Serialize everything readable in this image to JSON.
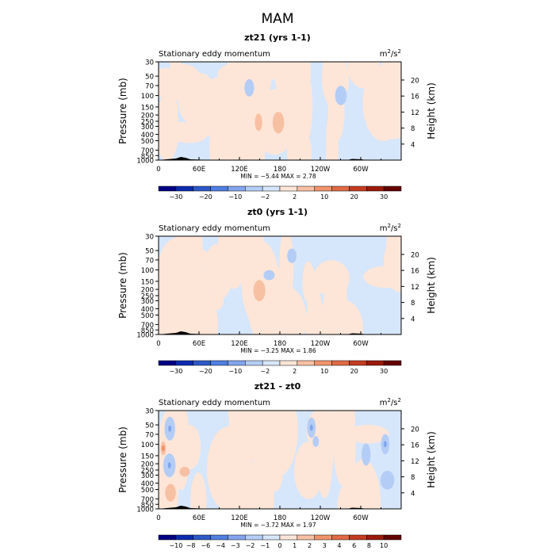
{
  "figure": {
    "title": "MAM"
  },
  "colors": {
    "full": [
      "#000083",
      "#0b2bb0",
      "#2d58c8",
      "#4f7fe0",
      "#83a5ee",
      "#b4cdf6",
      "#d6e6fb",
      "#fde6d8",
      "#f8c0a3",
      "#f0946c",
      "#e06a44",
      "#c43c20",
      "#9b1a0a",
      "#650000"
    ],
    "diff": [
      "#000083",
      "#0b2bb0",
      "#2d58c8",
      "#4f7fe0",
      "#83a5ee",
      "#b4cdf6",
      "#d6e6fb",
      "#fde6d8",
      "#f8c0a3",
      "#f0946c",
      "#e06a44",
      "#c43c20",
      "#9b1a0a",
      "#650000"
    ]
  },
  "panels": [
    {
      "title": "zt21 (yrs 1-1)",
      "left_label": "Stationary eddy momentum",
      "units_base": "m",
      "units_exp1": "2",
      "units_sep": "/s",
      "units_exp2": "2",
      "ylabel": "Pressure (mb)",
      "y2label": "Height (km)",
      "stats": "MIN =   −5.44   MAX =    2.78",
      "palette": "full",
      "levels": [
        "−30",
        "−20",
        "−10",
        "−2",
        "2",
        "10",
        "20",
        "30"
      ],
      "seed": 11,
      "strength": 0.35
    },
    {
      "title": "zt0 (yrs 1-1)",
      "left_label": "Stationary eddy momentum",
      "units_base": "m",
      "units_exp1": "2",
      "units_sep": "/s",
      "units_exp2": "2",
      "ylabel": "Pressure (mb)",
      "y2label": "Height (km)",
      "stats": "MIN =   −3.25   MAX =    1.86",
      "palette": "full",
      "levels": [
        "−30",
        "−20",
        "−10",
        "−2",
        "2",
        "10",
        "20",
        "30"
      ],
      "seed": 23,
      "strength": 0.3
    },
    {
      "title": "zt21 - zt0",
      "left_label": "Stationary eddy momentum",
      "units_base": "m",
      "units_exp1": "2",
      "units_sep": "/s",
      "units_exp2": "2",
      "ylabel": "Pressure (mb)",
      "y2label": "Height (km)",
      "stats": "MIN =   −3.72   MAX =    1.97",
      "palette": "diff",
      "levels": [
        "−10",
        "−8",
        "−6",
        "−4",
        "−3",
        "−2",
        "−1",
        "0",
        "1",
        "2",
        "3",
        "4",
        "6",
        "8",
        "10"
      ],
      "seed": 37,
      "strength": 1.0
    }
  ],
  "chart_data": {
    "type": "heatmap",
    "x_ticks": [
      "0",
      "60E",
      "120E",
      "180",
      "120W",
      "60W"
    ],
    "x_tick_values": [
      0,
      60,
      120,
      180,
      240,
      300
    ],
    "xlim": [
      0,
      360
    ],
    "y_ticks": [
      "30",
      "50",
      "70",
      "100",
      "150",
      "200",
      "250",
      "300",
      "400",
      "500",
      "700",
      "850",
      "1000"
    ],
    "y_tick_values": [
      30,
      50,
      70,
      100,
      150,
      200,
      250,
      300,
      400,
      500,
      700,
      850,
      1000
    ],
    "ylim": [
      1000,
      30
    ],
    "yscale": "log",
    "y2_ticks": [
      "4",
      "8",
      "12",
      "16",
      "20"
    ],
    "y2_tick_values": [
      4,
      8,
      12,
      16,
      20
    ],
    "y2_unit": "km",
    "panels": [
      {
        "title": "zt21 (yrs 1-1)",
        "min": -5.44,
        "max": 2.78,
        "contour_levels": [
          -30,
          -20,
          -10,
          -2,
          2,
          10,
          20,
          30
        ]
      },
      {
        "title": "zt0 (yrs 1-1)",
        "min": -3.25,
        "max": 1.86,
        "contour_levels": [
          -30,
          -20,
          -10,
          -2,
          2,
          10,
          20,
          30
        ]
      },
      {
        "title": "zt21 - zt0",
        "min": -3.72,
        "max": 1.97,
        "contour_levels": [
          -10,
          -8,
          -6,
          -4,
          -3,
          -2,
          -1,
          0,
          1,
          2,
          3,
          4,
          6,
          8,
          10
        ]
      }
    ]
  }
}
